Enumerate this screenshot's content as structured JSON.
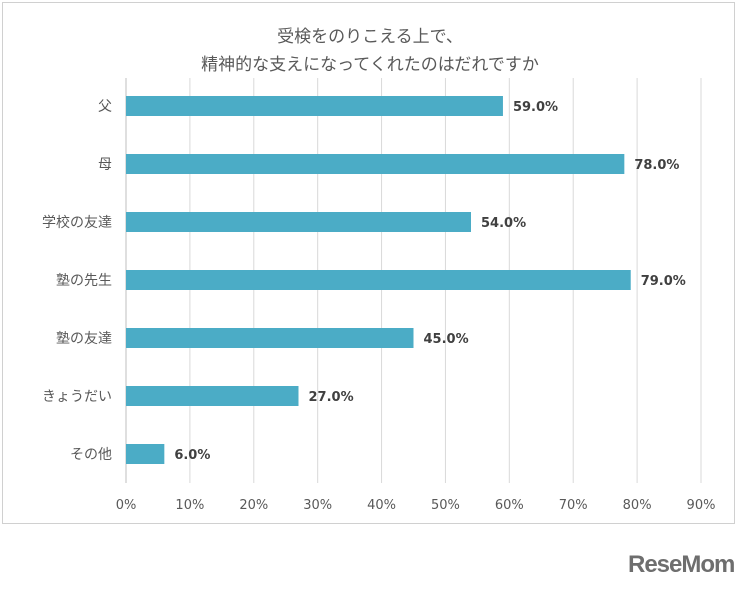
{
  "chart_data": {
    "type": "bar",
    "orientation": "horizontal",
    "title": [
      "受検をのりこえる上で、",
      "精神的な支えになってくれたのはだれですか"
    ],
    "categories": [
      "父",
      "母",
      "学校の友達",
      "塾の先生",
      "塾の友達",
      "きょうだい",
      "その他"
    ],
    "values": [
      59.0,
      78.0,
      54.0,
      79.0,
      45.0,
      27.0,
      6.0
    ],
    "data_labels": [
      "59.0%",
      "78.0%",
      "54.0%",
      "79.0%",
      "45.0%",
      "27.0%",
      "6.0%"
    ],
    "xticks": [
      "0%",
      "10%",
      "20%",
      "30%",
      "40%",
      "50%",
      "60%",
      "70%",
      "80%",
      "90%"
    ],
    "xlim": [
      0,
      90
    ],
    "grid": true,
    "bar_color": "#4bacc6"
  },
  "logo": "ReseMom"
}
